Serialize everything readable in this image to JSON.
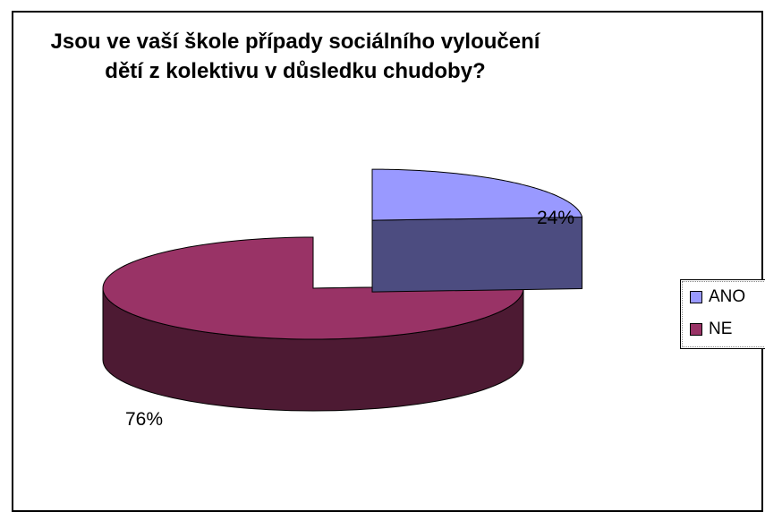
{
  "chart_data": {
    "type": "pie",
    "title_lines": [
      "Jsou ve vaší škole případy sociálního vyloučení",
      "dětí z kolektivu v důsledku chudoby?"
    ],
    "categories": [
      "ANO",
      "NE"
    ],
    "values": [
      24,
      76
    ],
    "value_labels": [
      "24%",
      "76%"
    ],
    "colors": {
      "ANO": {
        "top": "#9999ff",
        "side": "#4c4c80"
      },
      "NE": {
        "top": "#993366",
        "side": "#4d1a33"
      }
    },
    "style": "3d-exploded",
    "legend": "right"
  }
}
